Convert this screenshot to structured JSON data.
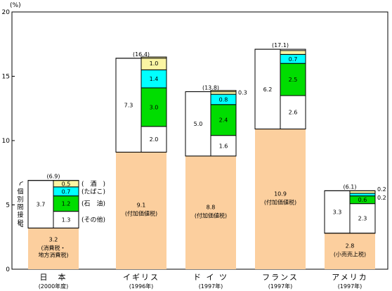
{
  "chart_data": {
    "type": "bar",
    "unit_label": "(%)",
    "ylim": [
      0,
      20
    ],
    "y_ticks": [
      "0",
      "5",
      "10",
      "15",
      "20"
    ],
    "grid": false,
    "series_names": [
      "consumption",
      "individual",
      "alcohol",
      "tobacco",
      "oil",
      "other"
    ],
    "colors": {
      "consumption": "#fccf9e",
      "individual": "#ffffff",
      "alcohol": "#fbf5a3",
      "tobacco": "#00ffff",
      "oil": "#00dd00",
      "other": "#ffffff"
    },
    "countries": [
      {
        "name": "日　本",
        "year": "(2000年度)",
        "total_label": "(6.9)",
        "consumption": 3.2,
        "consumption_label": "3.2",
        "consumption_note": [
          "(消費税・",
          "地方消費税)"
        ],
        "individual_total": 3.7,
        "individual_total_label": "3.7",
        "individual": [
          {
            "key": "other",
            "value": 1.3,
            "label": "1.3"
          },
          {
            "key": "oil",
            "value": 1.2,
            "label": "1.2"
          },
          {
            "key": "tobacco",
            "value": 0.7,
            "label": "0.7"
          },
          {
            "key": "alcohol",
            "value": 0.5,
            "label": "0.5"
          }
        ]
      },
      {
        "name": "イギリス",
        "year": "(1996年)",
        "total_label": "(16.4)",
        "consumption": 9.1,
        "consumption_label": "9.1",
        "consumption_note": [
          "(付加価値税)"
        ],
        "individual_total": 7.3,
        "individual_total_label": "7.3",
        "individual": [
          {
            "key": "other",
            "value": 2.0,
            "label": "2.0"
          },
          {
            "key": "oil",
            "value": 3.0,
            "label": "3.0"
          },
          {
            "key": "tobacco",
            "value": 1.4,
            "label": "1.4"
          },
          {
            "key": "alcohol",
            "value": 1.0,
            "label": "1.0"
          }
        ]
      },
      {
        "name": "ド イ ツ",
        "year": "(1997年)",
        "total_label": "(13.8)",
        "consumption": 8.8,
        "consumption_label": "8.8",
        "consumption_note": [
          "(付加価値税)"
        ],
        "individual_total": 5.0,
        "individual_total_label": "5.0",
        "individual": [
          {
            "key": "other",
            "value": 1.6,
            "label": "1.6"
          },
          {
            "key": "oil",
            "value": 2.4,
            "label": "2.4"
          },
          {
            "key": "tobacco",
            "value": 0.8,
            "label": "0.8"
          },
          {
            "key": "alcohol",
            "value": 0.3,
            "label": "0.3"
          }
        ]
      },
      {
        "name": "フランス",
        "year": "(1997年)",
        "total_label": "(17.1)",
        "consumption": 10.9,
        "consumption_label": "10.9",
        "consumption_note": [
          "(付加価値税)"
        ],
        "individual_total": 6.2,
        "individual_total_label": "6.2",
        "individual": [
          {
            "key": "other",
            "value": 2.6,
            "label": "2.6"
          },
          {
            "key": "oil",
            "value": 2.5,
            "label": "2.5"
          },
          {
            "key": "tobacco",
            "value": 0.7,
            "label": "0.7"
          },
          {
            "key": "alcohol",
            "value": 0.3,
            "label": "0.3"
          }
        ]
      },
      {
        "name": "アメリカ",
        "year": "(1997年)",
        "total_label": "(6.1)",
        "consumption": 2.8,
        "consumption_label": "2.8",
        "consumption_note": [
          "(小売売上税)"
        ],
        "individual_total": 3.3,
        "individual_total_label": "3.3",
        "individual": [
          {
            "key": "other",
            "value": 2.3,
            "label": "2.3"
          },
          {
            "key": "oil",
            "value": 0.6,
            "label": "0.6"
          },
          {
            "key": "tobacco",
            "value": 0.2,
            "label": "0.2"
          },
          {
            "key": "alcohol",
            "value": 0.2,
            "label": "0.2"
          }
        ]
      }
    ],
    "legend_labels": {
      "alcohol": "(　酒　)",
      "tobacco": "(たばこ)",
      "oil": "(石　油)",
      "other": "(その他)"
    },
    "individual_axis_label": [
      "個",
      "別",
      "間",
      "接",
      "税"
    ]
  }
}
